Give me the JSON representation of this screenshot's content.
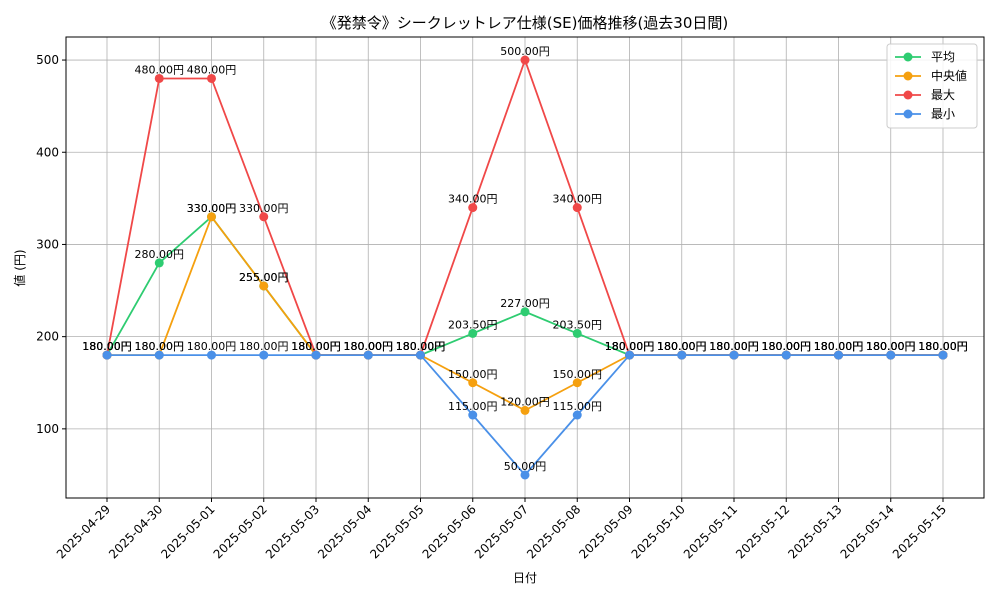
{
  "chart_data": {
    "type": "line",
    "title": "《発禁令》シークレットレア仕様(SE)価格推移(過去30日間)",
    "xlabel": "日付",
    "ylabel": "値 (円)",
    "categories": [
      "2025-04-29",
      "2025-04-30",
      "2025-05-01",
      "2025-05-02",
      "2025-05-03",
      "2025-05-04",
      "2025-05-05",
      "2025-05-06",
      "2025-05-07",
      "2025-05-08",
      "2025-05-09",
      "2025-05-10",
      "2025-05-11",
      "2025-05-12",
      "2025-05-13",
      "2025-05-14",
      "2025-05-15"
    ],
    "ylim": [
      25,
      525
    ],
    "yticks": [
      100,
      200,
      300,
      400,
      500
    ],
    "grid": true,
    "legend_position": "top-right",
    "label_suffix": "円",
    "series": [
      {
        "name": "平均",
        "color": "#2ecc71",
        "values": [
          180,
          280,
          330,
          255,
          180,
          180,
          180,
          203.5,
          227,
          203.5,
          180,
          180,
          180,
          180,
          180,
          180,
          180
        ]
      },
      {
        "name": "中央値",
        "color": "#f5a00f",
        "values": [
          180,
          180,
          330,
          255,
          180,
          180,
          180,
          150,
          120,
          150,
          180,
          180,
          180,
          180,
          180,
          180,
          180
        ]
      },
      {
        "name": "最大",
        "color": "#f04848",
        "values": [
          180,
          480,
          480,
          330,
          180,
          180,
          180,
          340,
          500,
          340,
          180,
          180,
          180,
          180,
          180,
          180,
          180
        ]
      },
      {
        "name": "最小",
        "color": "#4a90e8",
        "values": [
          180,
          180,
          180,
          180,
          180,
          180,
          180,
          115,
          50,
          115,
          180,
          180,
          180,
          180,
          180,
          180,
          180
        ]
      }
    ]
  }
}
